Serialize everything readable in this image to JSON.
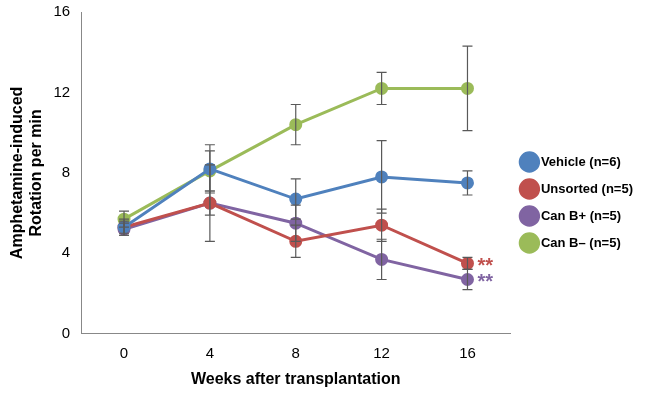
{
  "chart_data": {
    "type": "line",
    "x_label": "Weeks after transplantation",
    "y_label": [
      "Amphetamine-induced",
      "Rotation per min"
    ],
    "categories": [
      "0",
      "4",
      "8",
      "12",
      "16"
    ],
    "ylim": [
      0,
      16
    ],
    "yticks": [
      0,
      4,
      8,
      12,
      16
    ],
    "grid": false,
    "legend": "right",
    "series": [
      {
        "name": "Vehicle (n=6)",
        "color": "#4f81bd",
        "marker": "circle",
        "values": [
          5.3,
          8.2,
          6.7,
          7.8,
          7.5
        ],
        "errors": [
          0.4,
          1.2,
          1.0,
          1.8,
          0.6
        ]
      },
      {
        "name": "Unsorted (n=5)",
        "color": "#c0504d",
        "marker": "circle",
        "values": [
          5.3,
          6.5,
          4.6,
          5.4,
          3.5
        ],
        "errors": [
          0.3,
          0.6,
          0.8,
          0.8,
          0.3
        ],
        "annotation": "**"
      },
      {
        "name": "Can B+ (n=5)",
        "color": "#8064a2",
        "marker": "circle",
        "values": [
          5.2,
          6.5,
          5.5,
          3.7,
          2.7
        ],
        "errors": [
          0.3,
          1.9,
          0.9,
          1.0,
          0.5
        ],
        "annotation": "**"
      },
      {
        "name": "Can B– (n=5)",
        "color": "#9bbb59",
        "marker": "circle",
        "values": [
          5.7,
          8.1,
          10.4,
          12.2,
          12.2
        ],
        "errors": [
          0.4,
          1.0,
          1.0,
          0.8,
          2.1
        ]
      }
    ]
  }
}
